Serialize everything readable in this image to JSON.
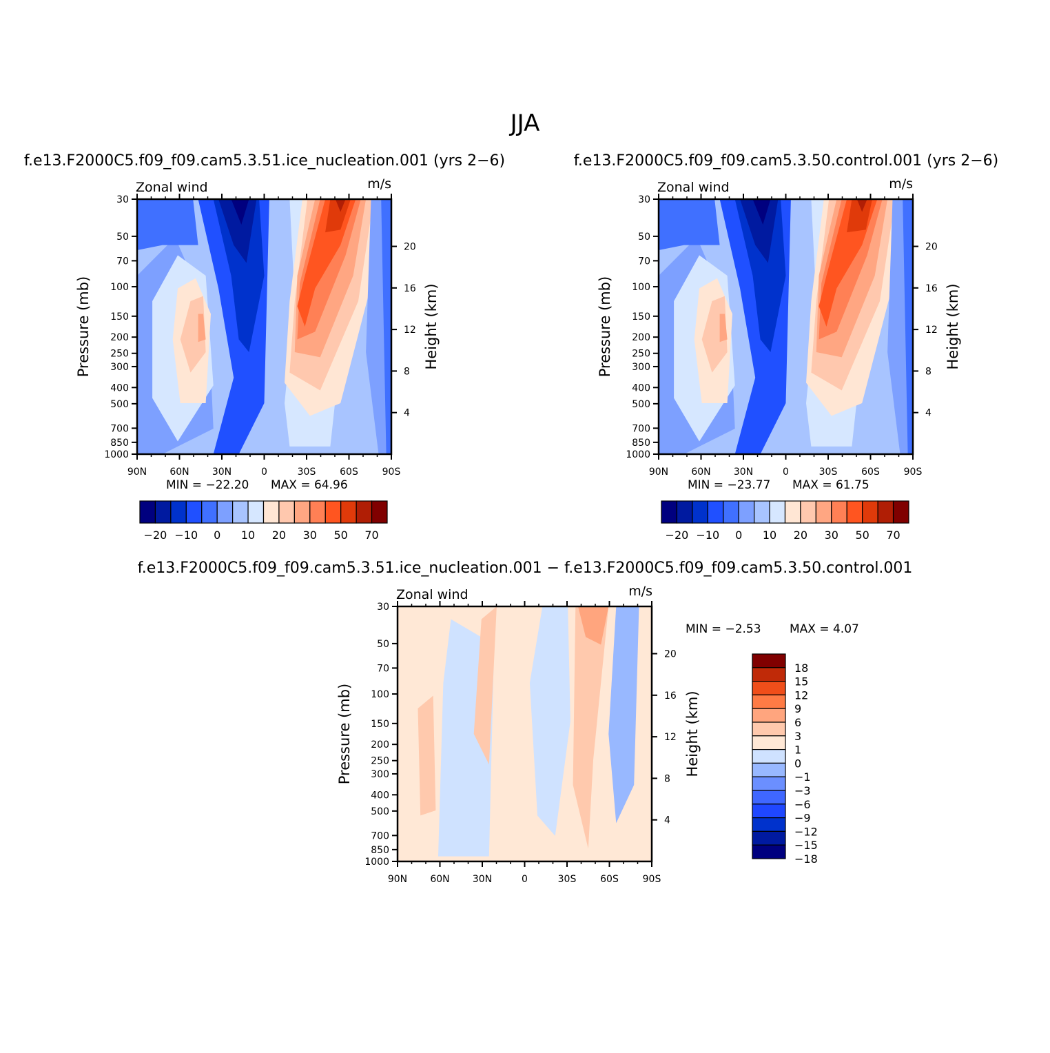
{
  "figure": {
    "title": "JJA"
  },
  "colors": {
    "levels21": [
      "#00007f",
      "#001aa0",
      "#0032cc",
      "#2050ff",
      "#4070ff",
      "#7da0ff",
      "#a8c4ff",
      "#d6e7ff",
      "#ffe6d4",
      "#ffc8ae",
      "#ffa682",
      "#ff8055",
      "#ff5520",
      "#e03a0a",
      "#b01e05",
      "#800000"
    ],
    "diff": [
      "#00007f",
      "#001aa0",
      "#0032cc",
      "#1f47ff",
      "#3f67ff",
      "#6b8fff",
      "#98b8ff",
      "#cfe2ff",
      "#ffe8d6",
      "#ffc9ad",
      "#ffa57e",
      "#ff7b45",
      "#f04e1a",
      "#c02a08",
      "#800000"
    ]
  },
  "chart_data": [
    {
      "type": "contour",
      "title": "f.e13.F2000C5.f09_f09.cam5.3.51.ice_nucleation.001  (yrs  2−6)",
      "left_string": "Zonal wind",
      "right_string": "m/s",
      "ylabel": "Pressure (mb)",
      "ylabel_right": "Height (km)",
      "x_ticks": [
        "90N",
        "60N",
        "30N",
        "0",
        "30S",
        "60S",
        "90S"
      ],
      "y_ticks": [
        "30",
        "50",
        "70",
        "100",
        "150",
        "200",
        "250",
        "300",
        "400",
        "500",
        "700",
        "850",
        "1000"
      ],
      "y_ticks_right": [
        "20",
        "16",
        "12",
        "8",
        "4"
      ],
      "stats": {
        "min_label": "MIN  =  −22.20",
        "max_label": "MAX  =    64.96",
        "min": -22.2,
        "max": 64.96
      },
      "colorbar_labels": [
        "−20",
        "−10",
        "0",
        "10",
        "20",
        "30",
        "50",
        "70"
      ],
      "colorbar_levels": [
        -25,
        -20,
        -15,
        -10,
        -5,
        0,
        5,
        10,
        15,
        20,
        25,
        30,
        40,
        50,
        60,
        70
      ],
      "jets": {
        "westerly_core_max": 64.96,
        "easterly_core_min": -22.2
      }
    },
    {
      "type": "contour",
      "title": "f.e13.F2000C5.f09_f09.cam5.3.50.control.001  (yrs  2−6)",
      "left_string": "Zonal wind",
      "right_string": "m/s",
      "ylabel": "Pressure (mb)",
      "ylabel_right": "Height (km)",
      "x_ticks": [
        "90N",
        "60N",
        "30N",
        "0",
        "30S",
        "60S",
        "90S"
      ],
      "y_ticks": [
        "30",
        "50",
        "70",
        "100",
        "150",
        "200",
        "250",
        "300",
        "400",
        "500",
        "700",
        "850",
        "1000"
      ],
      "y_ticks_right": [
        "20",
        "16",
        "12",
        "8",
        "4"
      ],
      "stats": {
        "min_label": "MIN  =  −23.77",
        "max_label": "MAX  =    61.75",
        "min": -23.77,
        "max": 61.75
      },
      "colorbar_labels": [
        "−20",
        "−10",
        "0",
        "10",
        "20",
        "30",
        "50",
        "70"
      ],
      "colorbar_levels": [
        -25,
        -20,
        -15,
        -10,
        -5,
        0,
        5,
        10,
        15,
        20,
        25,
        30,
        40,
        50,
        60,
        70
      ],
      "jets": {
        "westerly_core_max": 61.75,
        "easterly_core_min": -23.77
      }
    },
    {
      "type": "contour",
      "title": "f.e13.F2000C5.f09_f09.cam5.3.51.ice_nucleation.001  −  f.e13.F2000C5.f09_f09.cam5.3.50.control.001",
      "left_string": "Zonal wind",
      "right_string": "m/s",
      "ylabel": "Pressure (mb)",
      "ylabel_right": "Height (km)",
      "x_ticks": [
        "90N",
        "60N",
        "30N",
        "0",
        "30S",
        "60S",
        "90S"
      ],
      "y_ticks": [
        "30",
        "50",
        "70",
        "100",
        "150",
        "200",
        "250",
        "300",
        "400",
        "500",
        "700",
        "850",
        "1000"
      ],
      "y_ticks_right": [
        "20",
        "16",
        "12",
        "8",
        "4"
      ],
      "stats": {
        "min_label": "MIN  =    −2.53",
        "max_label": "MAX  =     4.07",
        "min": -2.53,
        "max": 4.07
      },
      "colorbar_labels": [
        "18",
        "15",
        "12",
        "9",
        "6",
        "3",
        "1",
        "0",
        "−1",
        "−3",
        "−6",
        "−9",
        "−12",
        "−15",
        "−18"
      ],
      "colorbar_levels": [
        -18,
        -15,
        -12,
        -9,
        -6,
        -3,
        -1,
        0,
        1,
        3,
        6,
        9,
        12,
        15,
        18
      ]
    }
  ]
}
